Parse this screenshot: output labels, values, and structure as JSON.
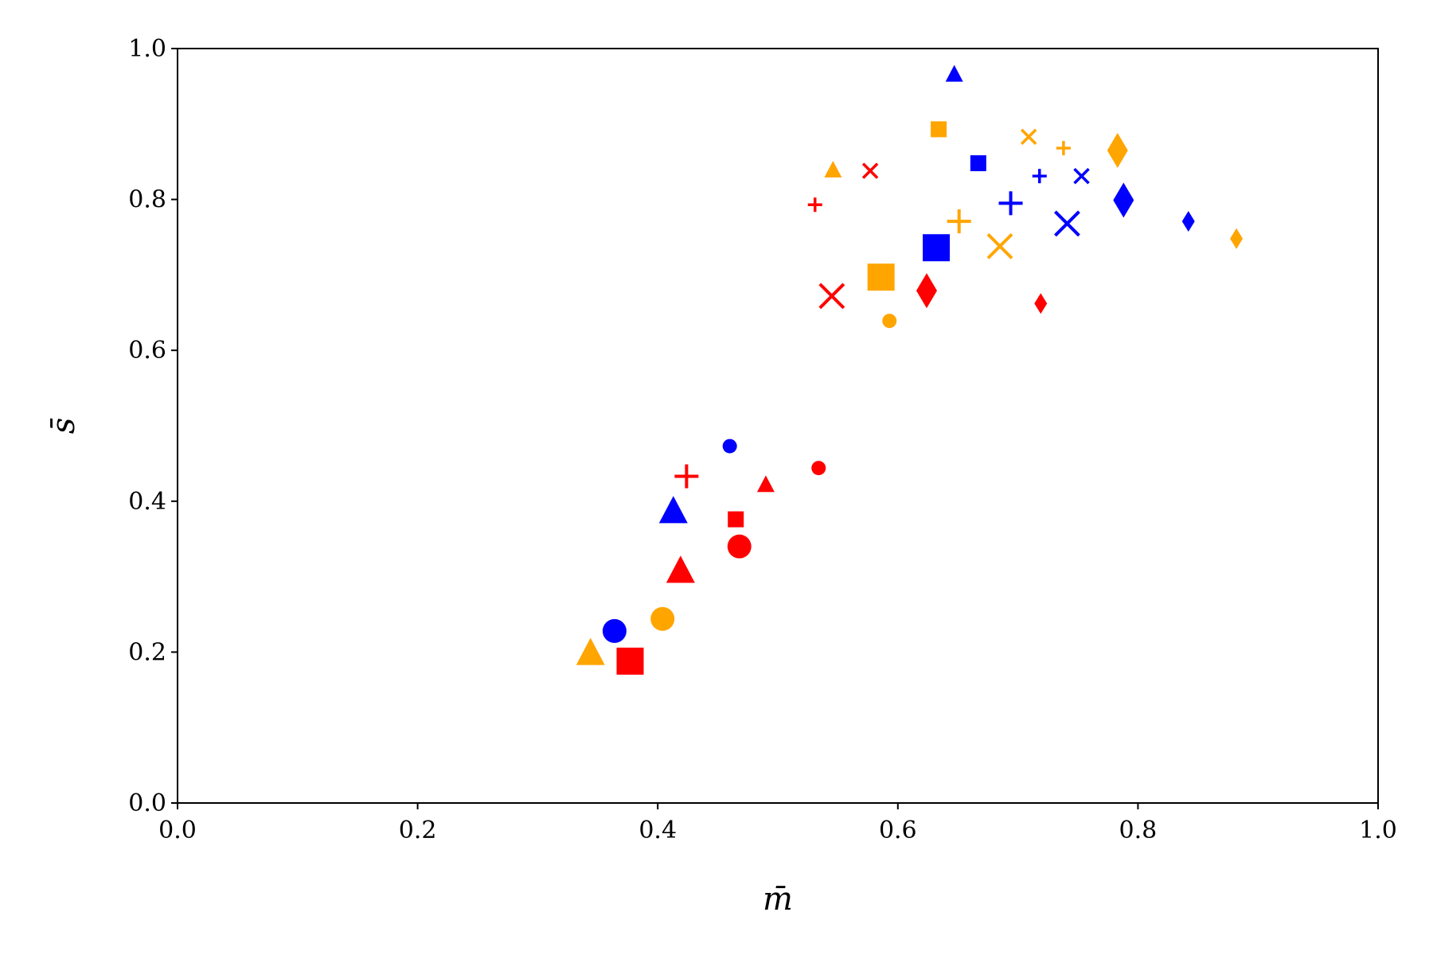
{
  "chart_data": {
    "type": "scatter",
    "title": "",
    "xlabel": "m̄",
    "ylabel": "s̄",
    "xlim": [
      0.0,
      1.0
    ],
    "ylim": [
      0.0,
      1.0
    ],
    "xticks": [
      "0.0",
      "0.2",
      "0.4",
      "0.6",
      "0.8",
      "1.0"
    ],
    "yticks": [
      "0.0",
      "0.2",
      "0.4",
      "0.6",
      "0.8",
      "1.0"
    ],
    "grid": false,
    "legend": "none",
    "colors": {
      "blue": "#0000ff",
      "red": "#ff0000",
      "orange": "#ffa500"
    },
    "points": [
      {
        "x": 0.647,
        "y": 0.966,
        "marker": "triangle",
        "size": "small",
        "color": "blue"
      },
      {
        "x": 0.667,
        "y": 0.848,
        "marker": "square",
        "size": "small",
        "color": "blue"
      },
      {
        "x": 0.694,
        "y": 0.795,
        "marker": "plus",
        "size": "large",
        "color": "blue"
      },
      {
        "x": 0.718,
        "y": 0.831,
        "marker": "plus",
        "size": "small",
        "color": "blue"
      },
      {
        "x": 0.753,
        "y": 0.831,
        "marker": "x",
        "size": "small",
        "color": "blue"
      },
      {
        "x": 0.741,
        "y": 0.768,
        "marker": "x",
        "size": "large",
        "color": "blue"
      },
      {
        "x": 0.632,
        "y": 0.736,
        "marker": "square",
        "size": "large",
        "color": "blue"
      },
      {
        "x": 0.788,
        "y": 0.799,
        "marker": "diamond",
        "size": "large",
        "color": "blue"
      },
      {
        "x": 0.842,
        "y": 0.771,
        "marker": "diamond",
        "size": "small",
        "color": "blue"
      },
      {
        "x": 0.46,
        "y": 0.473,
        "marker": "circle",
        "size": "small",
        "color": "blue"
      },
      {
        "x": 0.413,
        "y": 0.387,
        "marker": "triangle",
        "size": "large",
        "color": "blue"
      },
      {
        "x": 0.364,
        "y": 0.228,
        "marker": "circle",
        "size": "large",
        "color": "blue"
      },
      {
        "x": 0.634,
        "y": 0.893,
        "marker": "square",
        "size": "small",
        "color": "orange"
      },
      {
        "x": 0.546,
        "y": 0.839,
        "marker": "triangle",
        "size": "small",
        "color": "orange"
      },
      {
        "x": 0.709,
        "y": 0.883,
        "marker": "x",
        "size": "small",
        "color": "orange"
      },
      {
        "x": 0.738,
        "y": 0.868,
        "marker": "plus",
        "size": "small",
        "color": "orange"
      },
      {
        "x": 0.783,
        "y": 0.865,
        "marker": "diamond",
        "size": "large",
        "color": "orange"
      },
      {
        "x": 0.651,
        "y": 0.771,
        "marker": "plus",
        "size": "large",
        "color": "orange"
      },
      {
        "x": 0.685,
        "y": 0.738,
        "marker": "x",
        "size": "large",
        "color": "orange"
      },
      {
        "x": 0.586,
        "y": 0.697,
        "marker": "square",
        "size": "large",
        "color": "orange"
      },
      {
        "x": 0.593,
        "y": 0.639,
        "marker": "circle",
        "size": "small",
        "color": "orange"
      },
      {
        "x": 0.882,
        "y": 0.748,
        "marker": "diamond",
        "size": "small",
        "color": "orange"
      },
      {
        "x": 0.404,
        "y": 0.244,
        "marker": "circle",
        "size": "large",
        "color": "orange"
      },
      {
        "x": 0.344,
        "y": 0.199,
        "marker": "triangle",
        "size": "large",
        "color": "orange"
      },
      {
        "x": 0.531,
        "y": 0.793,
        "marker": "plus",
        "size": "small",
        "color": "red"
      },
      {
        "x": 0.577,
        "y": 0.838,
        "marker": "x",
        "size": "small",
        "color": "red"
      },
      {
        "x": 0.545,
        "y": 0.672,
        "marker": "x",
        "size": "large",
        "color": "red"
      },
      {
        "x": 0.624,
        "y": 0.679,
        "marker": "diamond",
        "size": "large",
        "color": "red"
      },
      {
        "x": 0.719,
        "y": 0.662,
        "marker": "diamond",
        "size": "small",
        "color": "red"
      },
      {
        "x": 0.424,
        "y": 0.433,
        "marker": "plus",
        "size": "large",
        "color": "red"
      },
      {
        "x": 0.49,
        "y": 0.422,
        "marker": "triangle",
        "size": "small",
        "color": "red"
      },
      {
        "x": 0.534,
        "y": 0.444,
        "marker": "circle",
        "size": "small",
        "color": "red"
      },
      {
        "x": 0.465,
        "y": 0.376,
        "marker": "square",
        "size": "small",
        "color": "red"
      },
      {
        "x": 0.419,
        "y": 0.308,
        "marker": "triangle",
        "size": "large",
        "color": "red"
      },
      {
        "x": 0.468,
        "y": 0.34,
        "marker": "circle",
        "size": "large",
        "color": "red"
      },
      {
        "x": 0.377,
        "y": 0.188,
        "marker": "square",
        "size": "large",
        "color": "red"
      }
    ]
  }
}
